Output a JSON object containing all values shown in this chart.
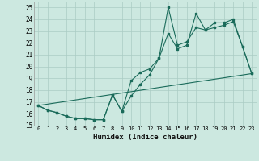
{
  "xlabel": "Humidex (Indice chaleur)",
  "ylabel": "",
  "background_color": "#cce8e0",
  "grid_color": "#aaccC4",
  "line_color": "#1a6b5a",
  "xlim": [
    -0.5,
    23.5
  ],
  "ylim": [
    15,
    25.5
  ],
  "yticks": [
    15,
    16,
    17,
    18,
    19,
    20,
    21,
    22,
    23,
    24,
    25
  ],
  "xticks": [
    0,
    1,
    2,
    3,
    4,
    5,
    6,
    7,
    8,
    9,
    10,
    11,
    12,
    13,
    14,
    15,
    16,
    17,
    18,
    19,
    20,
    21,
    22,
    23
  ],
  "series1_x": [
    0,
    1,
    2,
    3,
    4,
    5,
    6,
    7,
    8,
    9,
    10,
    11,
    12,
    13,
    14,
    15,
    16,
    17,
    18,
    19,
    20,
    21,
    22,
    23
  ],
  "series1_y": [
    16.7,
    16.3,
    16.1,
    15.8,
    15.6,
    15.6,
    15.5,
    15.5,
    17.6,
    16.2,
    17.5,
    18.5,
    19.3,
    20.7,
    25.0,
    21.8,
    22.1,
    23.3,
    23.1,
    23.7,
    23.7,
    24.0,
    21.7,
    19.4
  ],
  "series2_x": [
    0,
    1,
    2,
    3,
    4,
    5,
    6,
    7,
    8,
    9,
    10,
    11,
    12,
    13,
    14,
    15,
    16,
    17,
    18,
    19,
    20,
    21,
    22,
    23
  ],
  "series2_y": [
    16.7,
    16.3,
    16.1,
    15.8,
    15.6,
    15.6,
    15.5,
    15.5,
    17.6,
    16.2,
    18.8,
    19.5,
    19.8,
    20.7,
    22.8,
    21.5,
    21.8,
    24.5,
    23.1,
    23.3,
    23.5,
    23.8,
    21.7,
    19.4
  ],
  "series3_x": [
    0,
    23
  ],
  "series3_y": [
    16.7,
    19.4
  ]
}
